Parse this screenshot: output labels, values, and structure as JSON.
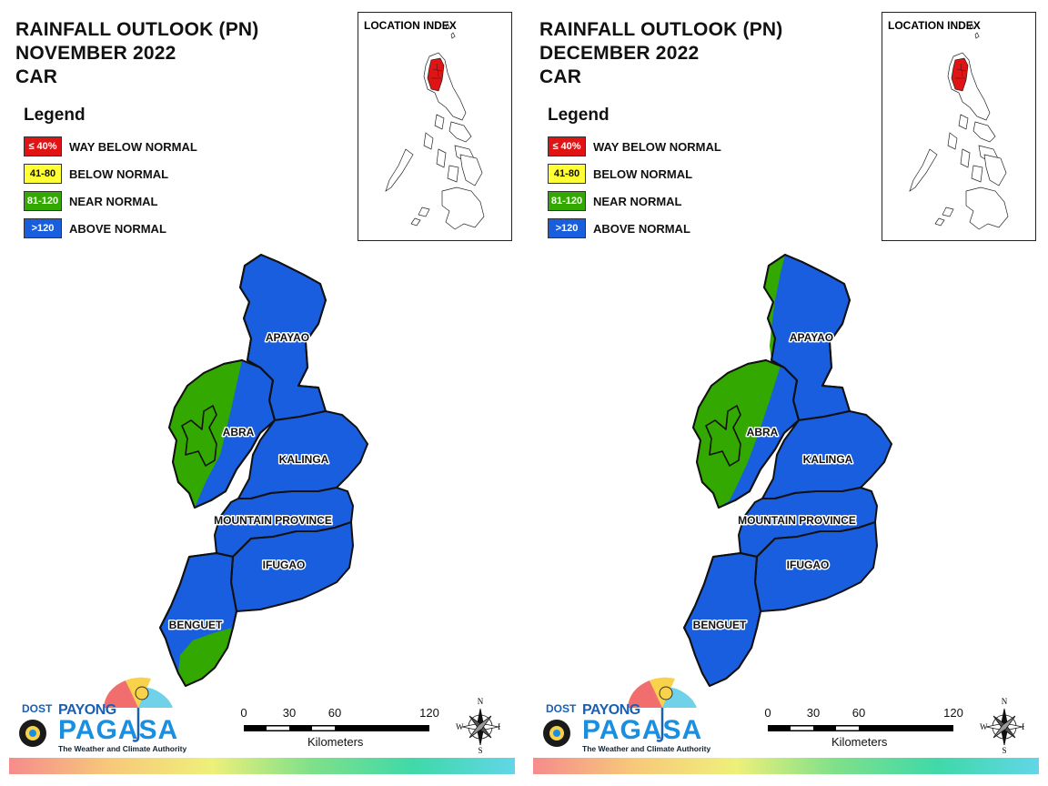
{
  "panels": [
    {
      "title_line1": "RAINFALL OUTLOOK (PN)",
      "title_line2": "NOVEMBER 2022",
      "title_line3": "CAR",
      "abra_mostly_green": false,
      "benguet_green_portion": true,
      "apayao_green_strip": false
    },
    {
      "title_line1": "RAINFALL OUTLOOK (PN)",
      "title_line2": "DECEMBER 2022",
      "title_line3": "CAR",
      "abra_mostly_green": true,
      "benguet_green_portion": false,
      "apayao_green_strip": true
    }
  ],
  "legend": {
    "title": "Legend",
    "items": [
      {
        "swatch": "≤ 40%",
        "label": "WAY BELOW NORMAL",
        "color": "#e01414",
        "text_color": "#ffffff"
      },
      {
        "swatch": "41-80",
        "label": "BELOW NORMAL",
        "color": "#ffff33",
        "text_color": "#111111"
      },
      {
        "swatch": "81-120",
        "label": "NEAR NORMAL",
        "color": "#33a800",
        "text_color": "#ffffff"
      },
      {
        "swatch": ">120",
        "label": "ABOVE NORMAL",
        "color": "#1a5ee0",
        "text_color": "#ffffff"
      }
    ]
  },
  "location_index": {
    "title": "LOCATION INDEX",
    "highlight_color": "#e01414"
  },
  "provinces": {
    "apayao": "APAYAO",
    "abra": "ABRA",
    "kalinga": "KALINGA",
    "mountain_province": "MOUNTAIN PROVINCE",
    "ifugao": "IFUGAO",
    "benguet": "BENGUET"
  },
  "colors": {
    "above_normal": "#1a5ee0",
    "near_normal": "#33a800"
  },
  "logo": {
    "dost": "DOST",
    "payong": "PAYONG",
    "pagasa": "PAGASA",
    "tagline": "The Weather and Climate Authority",
    "icon": "umbrella-sun-cloud-icon"
  },
  "scale": {
    "ticks": [
      "0",
      "30",
      "60",
      "120"
    ],
    "unit": "Kilometers"
  },
  "compass": {
    "n": "N",
    "s": "S",
    "e": "E",
    "w": "W",
    "icon": "compass-rose-icon"
  }
}
